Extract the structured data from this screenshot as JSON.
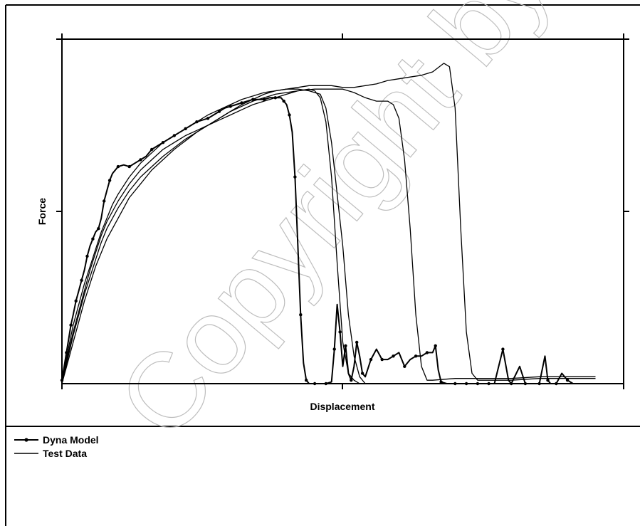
{
  "chart_data": {
    "type": "line",
    "title": "",
    "xlabel": "Displacement",
    "ylabel": "Force",
    "xlim": [
      0,
      100
    ],
    "ylim": [
      0,
      100
    ],
    "ticks_labeled": false,
    "grid": false,
    "legend_position": "bottom-left, below plot",
    "watermark": "Copyright by",
    "series": [
      {
        "name": "Dyna Model",
        "marker": "dot",
        "points": [
          [
            0,
            1
          ],
          [
            0.4,
            5
          ],
          [
            0.8,
            9
          ],
          [
            1.2,
            13
          ],
          [
            1.6,
            17
          ],
          [
            2.0,
            20
          ],
          [
            2.5,
            24
          ],
          [
            3.0,
            27
          ],
          [
            3.5,
            30
          ],
          [
            4.0,
            33
          ],
          [
            4.5,
            37
          ],
          [
            5.0,
            40
          ],
          [
            5.5,
            42
          ],
          [
            6.0,
            44
          ],
          [
            6.5,
            45
          ],
          [
            7.0,
            48
          ],
          [
            7.5,
            53
          ],
          [
            8.0,
            56
          ],
          [
            8.5,
            59
          ],
          [
            9.0,
            61
          ],
          [
            10.0,
            63
          ],
          [
            11.0,
            63.5
          ],
          [
            12.0,
            63
          ],
          [
            13.0,
            64
          ],
          [
            14.0,
            65
          ],
          [
            15.0,
            66
          ],
          [
            16.0,
            68
          ],
          [
            17.0,
            69
          ],
          [
            18.0,
            70
          ],
          [
            19.0,
            71
          ],
          [
            20.0,
            72
          ],
          [
            21.0,
            73
          ],
          [
            22.0,
            74
          ],
          [
            23.0,
            75
          ],
          [
            24.0,
            76
          ],
          [
            25.0,
            76.5
          ],
          [
            26.0,
            77
          ],
          [
            27.0,
            78
          ],
          [
            28.0,
            79
          ],
          [
            29.0,
            80
          ],
          [
            30.0,
            80.5
          ],
          [
            31.0,
            81
          ],
          [
            32.0,
            81.5
          ],
          [
            33.0,
            82
          ],
          [
            34.0,
            82.5
          ],
          [
            35.0,
            82.5
          ],
          [
            36.0,
            82.5
          ],
          [
            37.0,
            83
          ],
          [
            38.0,
            83
          ],
          [
            39.0,
            83
          ],
          [
            39.5,
            82
          ],
          [
            40.0,
            81
          ],
          [
            40.5,
            78
          ],
          [
            41.0,
            73
          ],
          [
            41.5,
            60
          ],
          [
            42.0,
            40
          ],
          [
            42.5,
            20
          ],
          [
            43.0,
            6
          ],
          [
            43.5,
            1
          ],
          [
            44.0,
            0
          ],
          [
            45.0,
            0
          ],
          [
            46.0,
            0
          ],
          [
            47.0,
            0
          ],
          [
            48.0,
            0.5
          ],
          [
            48.5,
            10
          ],
          [
            49.0,
            23
          ],
          [
            49.5,
            15
          ],
          [
            50.0,
            5
          ],
          [
            50.5,
            11
          ],
          [
            51.0,
            3
          ],
          [
            51.5,
            1
          ],
          [
            52.0,
            5
          ],
          [
            52.5,
            12
          ],
          [
            53.0,
            8
          ],
          [
            53.5,
            3
          ],
          [
            54.0,
            2
          ],
          [
            55.0,
            7
          ],
          [
            56.0,
            10
          ],
          [
            57.0,
            7
          ],
          [
            58.0,
            7
          ],
          [
            59.0,
            8
          ],
          [
            60.0,
            9
          ],
          [
            61.0,
            5
          ],
          [
            62.0,
            7
          ],
          [
            63.0,
            8
          ],
          [
            64.0,
            8
          ],
          [
            65.0,
            9
          ],
          [
            66.0,
            9
          ],
          [
            66.5,
            11
          ],
          [
            67.0,
            4
          ],
          [
            67.5,
            0.5
          ],
          [
            68.5,
            0
          ],
          [
            70.0,
            0
          ],
          [
            71.0,
            0
          ],
          [
            72.0,
            0
          ],
          [
            73.0,
            0
          ],
          [
            74.0,
            0
          ],
          [
            75.0,
            0
          ],
          [
            76.0,
            0
          ],
          [
            77.0,
            0
          ],
          [
            78.5,
            10
          ],
          [
            79.5,
            1
          ],
          [
            80.0,
            0
          ],
          [
            81.5,
            5
          ],
          [
            82.5,
            0
          ],
          [
            84.0,
            0
          ],
          [
            85.0,
            0
          ],
          [
            86.0,
            8
          ],
          [
            86.5,
            1
          ],
          [
            87.0,
            0
          ],
          [
            88.0,
            0
          ],
          [
            89.0,
            3
          ],
          [
            90.0,
            1
          ],
          [
            91.0,
            0
          ]
        ]
      },
      {
        "name": "Test Data",
        "marker": "none",
        "points": [
          [
            0,
            0
          ],
          [
            1,
            8
          ],
          [
            2,
            15
          ],
          [
            3,
            21
          ],
          [
            4,
            27
          ],
          [
            5,
            33
          ],
          [
            6,
            38
          ],
          [
            7,
            43
          ],
          [
            8,
            47
          ],
          [
            9,
            50
          ],
          [
            10,
            53
          ],
          [
            12,
            58
          ],
          [
            14,
            62
          ],
          [
            16,
            65
          ],
          [
            18,
            68
          ],
          [
            20,
            70
          ],
          [
            22,
            72
          ],
          [
            24,
            73.5
          ],
          [
            26,
            75
          ],
          [
            28,
            76.5
          ],
          [
            30,
            78
          ],
          [
            32,
            79.5
          ],
          [
            34,
            81
          ],
          [
            36,
            82
          ],
          [
            38,
            83
          ],
          [
            40,
            84
          ],
          [
            42,
            85
          ],
          [
            44,
            85.5
          ],
          [
            45,
            85
          ],
          [
            46,
            83
          ],
          [
            47,
            76
          ],
          [
            48,
            60
          ],
          [
            49,
            35
          ],
          [
            50,
            12
          ],
          [
            51,
            3
          ],
          [
            52,
            1
          ],
          [
            53,
            0
          ]
        ]
      },
      {
        "name": "Test Data",
        "marker": "none",
        "points": [
          [
            0,
            0
          ],
          [
            1,
            7
          ],
          [
            2,
            14
          ],
          [
            3,
            20
          ],
          [
            4,
            26
          ],
          [
            5,
            31
          ],
          [
            6,
            36
          ],
          [
            7,
            41
          ],
          [
            8,
            45
          ],
          [
            9,
            48
          ],
          [
            10,
            51
          ],
          [
            12,
            56
          ],
          [
            14,
            60
          ],
          [
            16,
            63
          ],
          [
            18,
            66
          ],
          [
            20,
            68.5
          ],
          [
            22,
            71
          ],
          [
            24,
            73
          ],
          [
            26,
            75
          ],
          [
            28,
            77
          ],
          [
            30,
            79
          ],
          [
            32,
            80.5
          ],
          [
            34,
            82
          ],
          [
            36,
            83
          ],
          [
            38,
            84
          ],
          [
            40,
            84.5
          ],
          [
            42,
            85
          ],
          [
            45,
            85.5
          ],
          [
            48,
            85.5
          ],
          [
            50,
            85.5
          ],
          [
            52,
            84.5
          ],
          [
            54,
            83
          ],
          [
            56,
            82
          ],
          [
            58,
            82
          ],
          [
            59,
            81
          ],
          [
            60,
            77
          ],
          [
            61,
            65
          ],
          [
            62,
            45
          ],
          [
            63,
            20
          ],
          [
            64,
            5
          ],
          [
            65,
            1
          ],
          [
            66,
            1
          ],
          [
            70,
            1.5
          ],
          [
            75,
            1.5
          ],
          [
            80,
            1.5
          ],
          [
            85,
            2
          ],
          [
            90,
            2
          ],
          [
            95,
            2
          ]
        ]
      },
      {
        "name": "Test Data",
        "marker": "none",
        "points": [
          [
            0,
            0
          ],
          [
            1,
            9
          ],
          [
            2,
            17
          ],
          [
            3,
            23
          ],
          [
            4,
            29
          ],
          [
            5,
            34
          ],
          [
            6,
            39
          ],
          [
            7,
            44
          ],
          [
            8,
            48
          ],
          [
            9,
            52
          ],
          [
            10,
            55
          ],
          [
            12,
            60
          ],
          [
            14,
            64
          ],
          [
            16,
            67
          ],
          [
            18,
            70
          ],
          [
            20,
            72
          ],
          [
            22,
            74
          ],
          [
            24,
            76
          ],
          [
            26,
            78
          ],
          [
            28,
            79.5
          ],
          [
            30,
            81
          ],
          [
            32,
            82.5
          ],
          [
            34,
            83.5
          ],
          [
            36,
            84.5
          ],
          [
            38,
            85
          ],
          [
            40,
            85.5
          ],
          [
            42,
            86
          ],
          [
            44,
            86.5
          ],
          [
            46,
            86.5
          ],
          [
            48,
            86.5
          ],
          [
            50,
            86
          ],
          [
            52,
            86
          ],
          [
            54,
            86.5
          ],
          [
            56,
            87
          ],
          [
            58,
            88
          ],
          [
            60,
            88.5
          ],
          [
            62,
            89
          ],
          [
            64,
            89.5
          ],
          [
            66,
            90.5
          ],
          [
            68,
            93
          ],
          [
            69,
            92
          ],
          [
            70,
            80
          ],
          [
            71,
            45
          ],
          [
            72,
            15
          ],
          [
            73,
            3
          ],
          [
            74,
            1
          ],
          [
            76,
            1
          ],
          [
            80,
            1
          ],
          [
            85,
            1.5
          ],
          [
            90,
            1.5
          ],
          [
            95,
            1.5
          ]
        ]
      },
      {
        "name": "Test Data",
        "marker": "none",
        "points": [
          [
            0,
            0
          ],
          [
            1,
            6
          ],
          [
            2,
            12
          ],
          [
            3,
            18
          ],
          [
            4,
            24
          ],
          [
            5,
            29
          ],
          [
            6,
            34
          ],
          [
            7,
            38
          ],
          [
            8,
            42
          ],
          [
            9,
            45
          ],
          [
            10,
            48
          ],
          [
            12,
            54
          ],
          [
            14,
            58
          ],
          [
            16,
            62
          ],
          [
            18,
            65
          ],
          [
            20,
            68
          ],
          [
            22,
            70.5
          ],
          [
            24,
            73
          ],
          [
            26,
            75
          ],
          [
            28,
            77
          ],
          [
            30,
            79
          ],
          [
            32,
            81
          ],
          [
            34,
            82.5
          ],
          [
            36,
            84
          ],
          [
            38,
            85
          ],
          [
            40,
            85.5
          ],
          [
            42,
            85.5
          ],
          [
            44,
            85
          ],
          [
            46,
            84
          ],
          [
            47,
            80
          ],
          [
            48,
            70
          ],
          [
            49,
            55
          ],
          [
            50,
            40
          ],
          [
            51,
            20
          ],
          [
            52,
            8
          ],
          [
            53,
            2
          ],
          [
            54,
            0
          ],
          [
            55,
            0
          ]
        ]
      }
    ]
  },
  "legend": {
    "items": [
      {
        "label": "Dyna Model",
        "marker": true
      },
      {
        "label": "Test Data",
        "marker": false
      }
    ]
  },
  "watermark_text": "Copyright by"
}
